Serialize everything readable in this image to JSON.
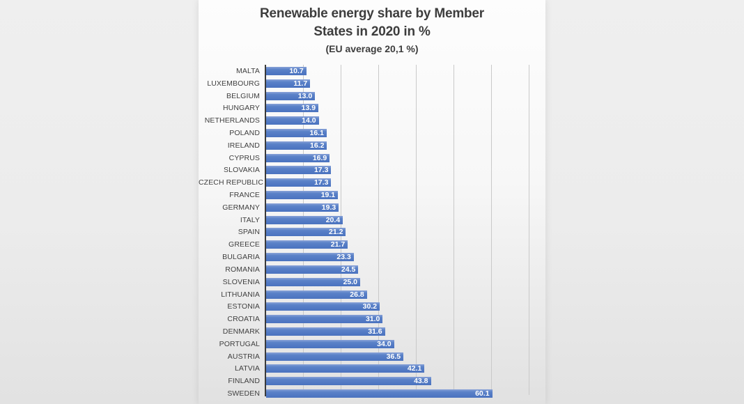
{
  "title": {
    "line1": "Renewable energy share by Member",
    "line2": "States in 2020 in %",
    "subtitle": "(EU average 20,1 %)"
  },
  "chart_data": {
    "type": "bar",
    "orientation": "horizontal",
    "title": "Renewable energy share by Member States in 2020 in %",
    "subtitle": "(EU average 20,1 %)",
    "xlabel": "",
    "ylabel": "",
    "unit": "%",
    "xlim": [
      0,
      70
    ],
    "gridline_interval": 10,
    "grid": true,
    "legend": false,
    "value_labels": "inside-end, one decimal, period separator, white bold",
    "categories": [
      "MALTA",
      "LUXEMBOURG",
      "BELGIUM",
      "HUNGARY",
      "NETHERLANDS",
      "POLAND",
      "IRELAND",
      "CYPRUS",
      "SLOVAKIA",
      "CZECH REPUBLIC",
      "FRANCE",
      "GERMANY",
      "ITALY",
      "SPAIN",
      "GREECE",
      "BULGARIA",
      "ROMANIA",
      "SLOVENIA",
      "LITHUANIA",
      "ESTONIA",
      "CROATIA",
      "DENMARK",
      "PORTUGAL",
      "AUSTRIA",
      "LATVIA",
      "FINLAND",
      "SWEDEN"
    ],
    "values": [
      10.7,
      11.7,
      13.0,
      13.9,
      14.0,
      16.1,
      16.2,
      16.9,
      17.3,
      17.3,
      19.1,
      19.3,
      20.4,
      21.2,
      21.7,
      23.3,
      24.5,
      25.0,
      26.8,
      30.2,
      31.0,
      31.6,
      34.0,
      36.5,
      42.1,
      43.8,
      60.1
    ],
    "colors": {
      "bar_top": "#8aa3d8",
      "bar_mid": "#5b82c8",
      "bar_bottom": "#4a72bf",
      "value_label": "#ffffff",
      "category_label": "#3f3f3f",
      "gridline": "#c9c9c9",
      "axis_line": "#3a3a3a",
      "title": "#3d3d3d",
      "panel_top": "#fdfdfd",
      "panel_bottom": "#e1e1e1",
      "page_background": "#ebebeb"
    }
  }
}
